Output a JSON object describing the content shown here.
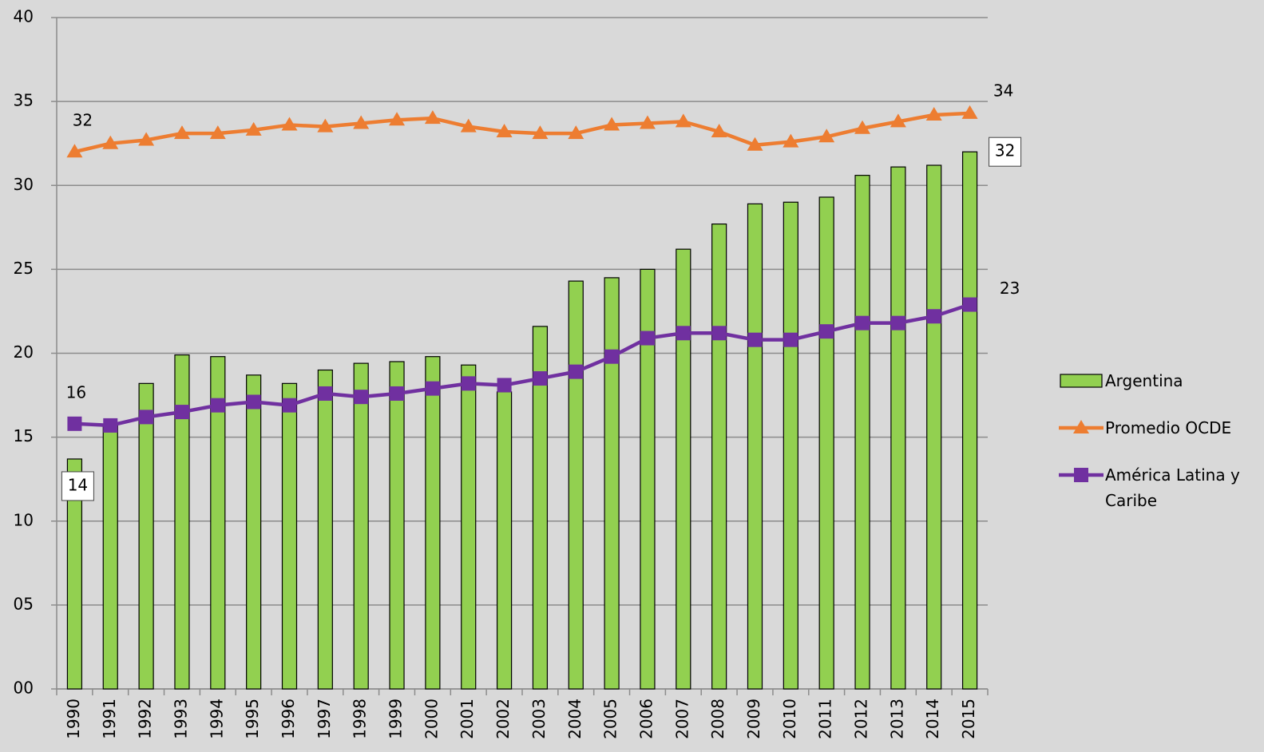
{
  "chart_data": {
    "type": "bar-line",
    "categories": [
      "1990",
      "1991",
      "1992",
      "1993",
      "1994",
      "1995",
      "1996",
      "1997",
      "1998",
      "1999",
      "2000",
      "2001",
      "2002",
      "2003",
      "2004",
      "2005",
      "2006",
      "2007",
      "2008",
      "2009",
      "2010",
      "2011",
      "2012",
      "2013",
      "2014",
      "2015"
    ],
    "series": [
      {
        "name": "Argentina",
        "type": "bar",
        "color": "#92d050",
        "values": [
          13.7,
          15.7,
          18.2,
          19.9,
          19.8,
          18.7,
          18.2,
          19.0,
          19.4,
          19.5,
          19.8,
          19.3,
          17.7,
          21.6,
          24.3,
          24.5,
          25.0,
          26.2,
          27.7,
          28.9,
          29.0,
          29.3,
          30.6,
          31.1,
          31.2,
          32.0
        ],
        "value_labels": [
          "14",
          null,
          null,
          null,
          null,
          null,
          null,
          null,
          null,
          null,
          null,
          null,
          null,
          null,
          null,
          null,
          null,
          null,
          null,
          null,
          null,
          null,
          null,
          null,
          null,
          "32"
        ]
      },
      {
        "name": "Promedio OCDE",
        "type": "line",
        "marker": "triangle",
        "color": "#ed7d31",
        "values": [
          32.0,
          32.5,
          32.7,
          33.1,
          33.1,
          33.3,
          33.6,
          33.5,
          33.7,
          33.9,
          34.0,
          33.5,
          33.2,
          33.1,
          33.1,
          33.6,
          33.7,
          33.8,
          33.2,
          32.4,
          32.6,
          32.9,
          33.4,
          33.8,
          34.2,
          34.3
        ],
        "value_labels": [
          "32",
          null,
          null,
          null,
          null,
          null,
          null,
          null,
          null,
          null,
          null,
          null,
          null,
          null,
          null,
          null,
          null,
          null,
          null,
          null,
          null,
          null,
          null,
          null,
          null,
          "34"
        ]
      },
      {
        "name": "América Latina y Caribe",
        "type": "line",
        "marker": "square",
        "color": "#7030a0",
        "values": [
          15.8,
          15.7,
          16.2,
          16.5,
          16.9,
          17.1,
          16.9,
          17.6,
          17.4,
          17.6,
          17.9,
          18.2,
          18.1,
          18.5,
          18.9,
          19.8,
          20.9,
          21.2,
          21.2,
          20.8,
          20.8,
          21.3,
          21.8,
          21.8,
          22.2,
          22.9
        ],
        "value_labels": [
          "16",
          null,
          null,
          null,
          null,
          null,
          null,
          null,
          null,
          null,
          null,
          null,
          null,
          null,
          null,
          null,
          null,
          null,
          null,
          null,
          null,
          null,
          null,
          null,
          null,
          "23"
        ]
      }
    ],
    "ylim": [
      0,
      40
    ],
    "yticks": [
      {
        "value": 0,
        "label": "00"
      },
      {
        "value": 5,
        "label": "05"
      },
      10,
      15,
      20,
      25,
      30,
      35,
      40
    ],
    "grid": true,
    "legend": "right"
  }
}
